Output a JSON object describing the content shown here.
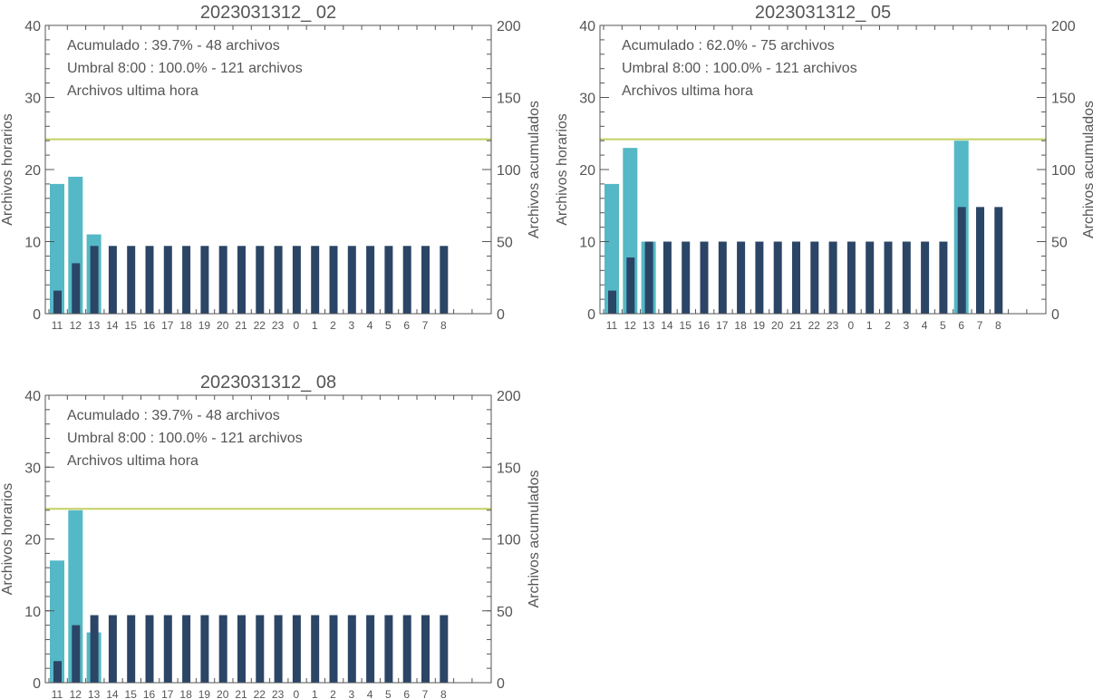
{
  "colors": {
    "hourly_bar": "#54b8c6",
    "cumulative_bar": "#2b4566",
    "threshold_line": "#c4d062",
    "axis": "#555555",
    "legend_acumulado": "#2b4566",
    "legend_umbral": "#b4c23e",
    "legend_ultima": "#54b8c6"
  },
  "chart_data": [
    {
      "type": "bar",
      "title": "2023031312_ 02",
      "ylabel": "Archivos horarios",
      "y2label": "Archivos acumulados",
      "ylim": [
        0,
        40
      ],
      "y2lim": [
        0,
        200
      ],
      "yticks": [
        "0",
        "10",
        "20",
        "30",
        "40"
      ],
      "y2ticks": [
        "0",
        "50",
        "100",
        "150",
        "200"
      ],
      "categories": [
        "11",
        "12",
        "13",
        "14",
        "15",
        "16",
        "17",
        "18",
        "19",
        "20",
        "21",
        "22",
        "23",
        "0",
        "1",
        "2",
        "3",
        "4",
        "5",
        "6",
        "7",
        "8"
      ],
      "legend": {
        "acumulado": "Acumulado : 39.7% - 48 archivos",
        "umbral": "Umbral 8:00 : 100.0% - 121 archivos",
        "ultima": "Archivos ultima hora"
      },
      "threshold": 121,
      "series": [
        {
          "name": "Archivos ultima hora",
          "axis": "left",
          "values": [
            18,
            19,
            11,
            0,
            0,
            0,
            0,
            0,
            0,
            0,
            0,
            0,
            0,
            0,
            0,
            0,
            0,
            0,
            0,
            0,
            0,
            0
          ]
        },
        {
          "name": "Acumulado",
          "axis": "right",
          "values": [
            16,
            35,
            47,
            47,
            47,
            47,
            47,
            47,
            47,
            47,
            47,
            47,
            47,
            47,
            47,
            47,
            47,
            47,
            47,
            47,
            47,
            47
          ]
        }
      ]
    },
    {
      "type": "bar",
      "title": "2023031312_ 05",
      "ylabel": "Archivos horarios",
      "y2label": "Archivos acumulados",
      "ylim": [
        0,
        40
      ],
      "y2lim": [
        0,
        200
      ],
      "yticks": [
        "0",
        "10",
        "20",
        "30",
        "40"
      ],
      "y2ticks": [
        "0",
        "50",
        "100",
        "150",
        "200"
      ],
      "categories": [
        "11",
        "12",
        "13",
        "14",
        "15",
        "16",
        "17",
        "18",
        "19",
        "20",
        "21",
        "22",
        "23",
        "0",
        "1",
        "2",
        "3",
        "4",
        "5",
        "6",
        "7",
        "8"
      ],
      "legend": {
        "acumulado": "Acumulado : 62.0% - 75 archivos",
        "umbral": "Umbral 8:00 : 100.0% - 121 archivos",
        "ultima": "Archivos ultima hora"
      },
      "threshold": 121,
      "series": [
        {
          "name": "Archivos ultima hora",
          "axis": "left",
          "values": [
            18,
            23,
            10,
            0,
            0,
            0,
            0,
            0,
            0,
            0,
            0,
            0,
            0,
            0,
            0,
            0,
            0,
            0,
            0,
            24,
            0,
            0
          ]
        },
        {
          "name": "Acumulado",
          "axis": "right",
          "values": [
            16,
            39,
            50,
            50,
            50,
            50,
            50,
            50,
            50,
            50,
            50,
            50,
            50,
            50,
            50,
            50,
            50,
            50,
            50,
            74,
            74,
            74
          ]
        }
      ]
    },
    {
      "type": "bar",
      "title": "2023031312_ 08",
      "ylabel": "Archivos horarios",
      "y2label": "Archivos acumulados",
      "ylim": [
        0,
        40
      ],
      "y2lim": [
        0,
        200
      ],
      "yticks": [
        "0",
        "10",
        "20",
        "30",
        "40"
      ],
      "y2ticks": [
        "0",
        "50",
        "100",
        "150",
        "200"
      ],
      "categories": [
        "11",
        "12",
        "13",
        "14",
        "15",
        "16",
        "17",
        "18",
        "19",
        "20",
        "21",
        "22",
        "23",
        "0",
        "1",
        "2",
        "3",
        "4",
        "5",
        "6",
        "7",
        "8"
      ],
      "legend": {
        "acumulado": "Acumulado : 39.7% - 48 archivos",
        "umbral": "Umbral 8:00 : 100.0% - 121 archivos",
        "ultima": "Archivos ultima hora"
      },
      "threshold": 121,
      "series": [
        {
          "name": "Archivos ultima hora",
          "axis": "left",
          "values": [
            17,
            24,
            7,
            0,
            0,
            0,
            0,
            0,
            0,
            0,
            0,
            0,
            0,
            0,
            0,
            0,
            0,
            0,
            0,
            0,
            0,
            0
          ]
        },
        {
          "name": "Acumulado",
          "axis": "right",
          "values": [
            15,
            40,
            47,
            47,
            47,
            47,
            47,
            47,
            47,
            47,
            47,
            47,
            47,
            47,
            47,
            47,
            47,
            47,
            47,
            47,
            47,
            47
          ]
        }
      ]
    }
  ]
}
